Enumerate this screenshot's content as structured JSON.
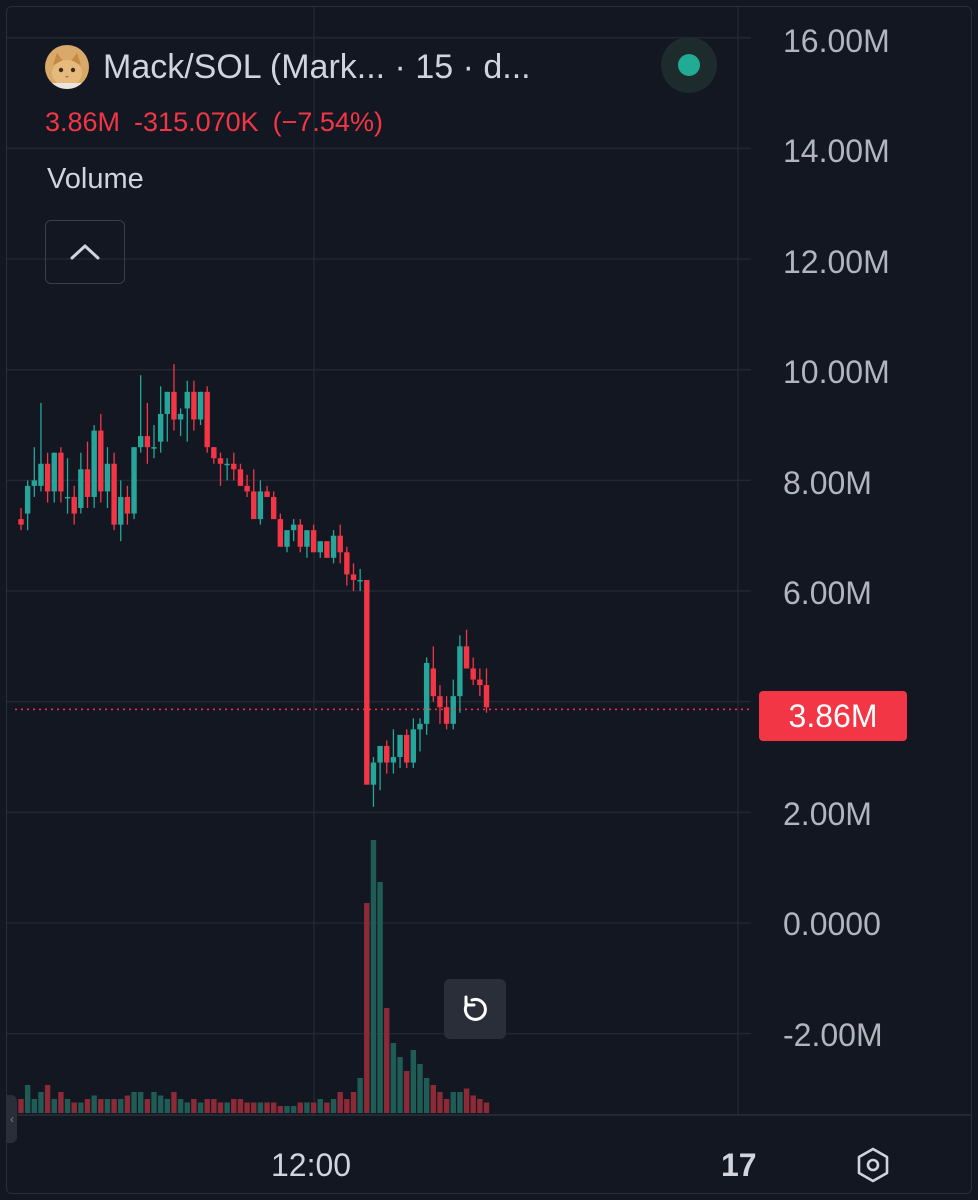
{
  "header": {
    "symbol_title": "Mack/SOL (Mark... · 15 · d...",
    "last_price": "3.86M",
    "change_abs": "-315.070K",
    "change_pct": "(−7.54%)",
    "volume_label": "Volume",
    "avatar_icon": "cat-avatar-icon",
    "status": "live"
  },
  "price_badge": "3.86M",
  "y_axis_labels": [
    "16.00M",
    "14.00M",
    "12.00M",
    "10.00M",
    "8.00M",
    "6.00M",
    "2.00M",
    "0.0000",
    "-2.00M"
  ],
  "x_axis_labels": [
    "12:00",
    "17"
  ],
  "colors": {
    "background": "#131722",
    "up": "#26a69a",
    "down": "#f23645",
    "up_volume": "#1f5c55",
    "down_volume": "#8c2a37",
    "grid": "#232733",
    "text": "#d1d4dc",
    "axis_text": "#b2b5be",
    "status_dot": "#22ab94"
  },
  "icons": {
    "collapse": "chevron-up-icon",
    "reset": "reset-icon",
    "settings": "settings-icon"
  },
  "chart_data": {
    "type": "candlestick",
    "y_range": [
      -3.5,
      16.3
    ],
    "y_unit": "M",
    "last_price": 3.86,
    "grid": true,
    "candles": [
      [
        7.3,
        7.5,
        7.1,
        7.2
      ],
      [
        7.4,
        8.0,
        7.1,
        7.9
      ],
      [
        7.9,
        8.6,
        7.7,
        8.0
      ],
      [
        7.9,
        9.4,
        7.8,
        8.3
      ],
      [
        8.3,
        8.5,
        7.6,
        7.8
      ],
      [
        7.8,
        8.5,
        7.6,
        8.5
      ],
      [
        8.5,
        8.6,
        7.6,
        7.8
      ],
      [
        7.7,
        8.4,
        7.4,
        7.7
      ],
      [
        7.7,
        7.9,
        7.2,
        7.4
      ],
      [
        7.5,
        8.5,
        7.4,
        8.2
      ],
      [
        8.2,
        8.7,
        7.5,
        7.7
      ],
      [
        7.7,
        9.0,
        7.5,
        8.9
      ],
      [
        8.9,
        9.2,
        7.6,
        7.8
      ],
      [
        7.8,
        8.6,
        7.5,
        8.3
      ],
      [
        8.3,
        8.5,
        7.1,
        7.2
      ],
      [
        7.2,
        8.0,
        6.9,
        7.7
      ],
      [
        7.7,
        7.9,
        7.2,
        7.4
      ],
      [
        7.4,
        8.6,
        7.3,
        8.6
      ],
      [
        8.6,
        9.9,
        8.5,
        8.8
      ],
      [
        8.8,
        9.4,
        8.3,
        8.6
      ],
      [
        8.6,
        9.0,
        8.4,
        8.6
      ],
      [
        8.7,
        9.7,
        8.5,
        9.2
      ],
      [
        9.2,
        9.6,
        8.7,
        9.6
      ],
      [
        9.6,
        10.1,
        8.9,
        9.1
      ],
      [
        9.1,
        9.3,
        8.8,
        9.2
      ],
      [
        9.3,
        9.8,
        8.7,
        9.6
      ],
      [
        9.6,
        9.8,
        8.9,
        9.1
      ],
      [
        9.1,
        9.6,
        9.0,
        9.6
      ],
      [
        9.6,
        9.7,
        8.5,
        8.6
      ],
      [
        8.6,
        8.6,
        8.3,
        8.4
      ],
      [
        8.4,
        8.5,
        7.9,
        8.3
      ],
      [
        8.3,
        8.4,
        8.0,
        8.3
      ],
      [
        8.3,
        8.5,
        8.0,
        8.2
      ],
      [
        8.2,
        8.3,
        7.9,
        7.9
      ],
      [
        7.9,
        8.1,
        7.7,
        7.8
      ],
      [
        7.8,
        8.2,
        7.4,
        7.3
      ],
      [
        7.3,
        8.0,
        7.2,
        7.8
      ],
      [
        7.8,
        7.9,
        7.7,
        7.7
      ],
      [
        7.7,
        7.8,
        7.3,
        7.3
      ],
      [
        7.3,
        7.4,
        6.8,
        6.8
      ],
      [
        6.8,
        7.0,
        6.7,
        7.1
      ],
      [
        7.1,
        7.3,
        6.9,
        7.2
      ],
      [
        7.2,
        7.3,
        6.7,
        6.8
      ],
      [
        6.8,
        7.0,
        6.6,
        7.1
      ],
      [
        7.1,
        7.2,
        6.7,
        6.7
      ],
      [
        6.7,
        6.9,
        6.6,
        6.9
      ],
      [
        6.9,
        6.9,
        6.6,
        6.6
      ],
      [
        6.6,
        7.1,
        6.5,
        7.0
      ],
      [
        7.0,
        7.2,
        6.5,
        6.7
      ],
      [
        6.7,
        6.8,
        6.1,
        6.3
      ],
      [
        6.3,
        6.5,
        6.0,
        6.2
      ],
      [
        6.2,
        6.4,
        6.0,
        6.2
      ],
      [
        6.2,
        6.2,
        2.5,
        2.5
      ],
      [
        2.5,
        3.0,
        2.1,
        2.9
      ],
      [
        2.9,
        3.1,
        2.4,
        3.2
      ],
      [
        3.2,
        3.3,
        2.7,
        2.9
      ],
      [
        2.9,
        3.5,
        2.7,
        3.0
      ],
      [
        3.0,
        3.4,
        2.8,
        3.4
      ],
      [
        3.4,
        3.5,
        2.8,
        2.9
      ],
      [
        2.9,
        3.7,
        2.8,
        3.5
      ],
      [
        3.5,
        3.7,
        3.1,
        3.6
      ],
      [
        3.6,
        4.8,
        3.4,
        4.7
      ],
      [
        4.6,
        5.0,
        4.0,
        4.1
      ],
      [
        4.1,
        4.3,
        3.6,
        3.9
      ],
      [
        3.9,
        4.1,
        3.5,
        3.6
      ],
      [
        3.6,
        4.4,
        3.5,
        4.1
      ],
      [
        4.1,
        5.2,
        3.8,
        5.0
      ],
      [
        5.0,
        5.3,
        4.6,
        4.6
      ],
      [
        4.6,
        4.8,
        4.3,
        4.4
      ],
      [
        4.4,
        4.6,
        4.1,
        4.3
      ],
      [
        4.3,
        4.6,
        3.8,
        3.9
      ]
    ],
    "volume": [
      2,
      4,
      2,
      3,
      4,
      2,
      3,
      2,
      1.5,
      1.5,
      2,
      2.5,
      2,
      2,
      2,
      2,
      2.5,
      3,
      3,
      2,
      3,
      2.5,
      2,
      3,
      2,
      1.5,
      2,
      1.5,
      2,
      2,
      1.5,
      1.5,
      2,
      2,
      1.5,
      1.5,
      1.5,
      1.5,
      1.5,
      1,
      1,
      1,
      1.5,
      1.5,
      1.5,
      2,
      1.5,
      2,
      3,
      2,
      3,
      5,
      30,
      39,
      33,
      15,
      10,
      8,
      6,
      9,
      7,
      5,
      4,
      3,
      2,
      3,
      3,
      3.5,
      2.5,
      2,
      1.5
    ],
    "x_labels": [
      "12:00",
      "17"
    ]
  }
}
